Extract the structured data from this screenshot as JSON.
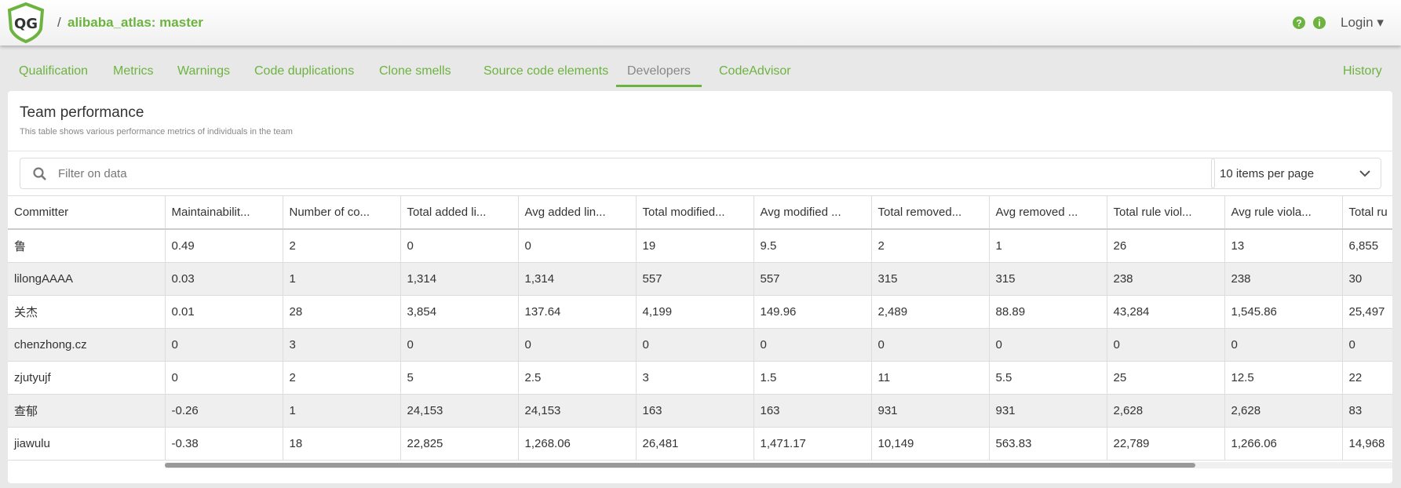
{
  "header": {
    "separator": "/",
    "project": "alibaba_atlas: master",
    "login": "Login"
  },
  "tabs": {
    "items": [
      "Qualification",
      "Metrics",
      "Warnings",
      "Code duplications",
      "Clone smells",
      "Source code elements",
      "Developers",
      "CodeAdvisor"
    ],
    "active": "Developers",
    "history": "History"
  },
  "panel": {
    "title": "Team performance",
    "subtitle": "This table shows various performance metrics of individuals in the team",
    "filter_placeholder": "Filter on data",
    "page_size": "10 items per page"
  },
  "table": {
    "columns": [
      "Committer",
      "Maintainabilit...",
      "Number of co...",
      "Total added li...",
      "Avg added lin...",
      "Total modified...",
      "Avg modified ...",
      "Total removed...",
      "Avg removed ...",
      "Total rule viol...",
      "Avg rule viola...",
      "Total ru"
    ],
    "rows": [
      [
        "鲁",
        "0.49",
        "2",
        "0",
        "0",
        "19",
        "9.5",
        "2",
        "1",
        "26",
        "13",
        "6,855"
      ],
      [
        "lilongAAAA",
        "0.03",
        "1",
        "1,314",
        "1,314",
        "557",
        "557",
        "315",
        "315",
        "238",
        "238",
        "30"
      ],
      [
        "关杰",
        "0.01",
        "28",
        "3,854",
        "137.64",
        "4,199",
        "149.96",
        "2,489",
        "88.89",
        "43,284",
        "1,545.86",
        "25,497"
      ],
      [
        "chenzhong.cz",
        "0",
        "3",
        "0",
        "0",
        "0",
        "0",
        "0",
        "0",
        "0",
        "0",
        "0"
      ],
      [
        "zjutyujf",
        "0",
        "2",
        "5",
        "2.5",
        "3",
        "1.5",
        "11",
        "5.5",
        "25",
        "12.5",
        "22"
      ],
      [
        "查郁",
        "-0.26",
        "1",
        "24,153",
        "24,153",
        "163",
        "163",
        "931",
        "931",
        "2,628",
        "2,628",
        "83"
      ],
      [
        "jiawulu",
        "-0.38",
        "18",
        "22,825",
        "1,268.06",
        "26,481",
        "1,471.17",
        "10,149",
        "563.83",
        "22,789",
        "1,266.06",
        "14,968"
      ]
    ]
  }
}
